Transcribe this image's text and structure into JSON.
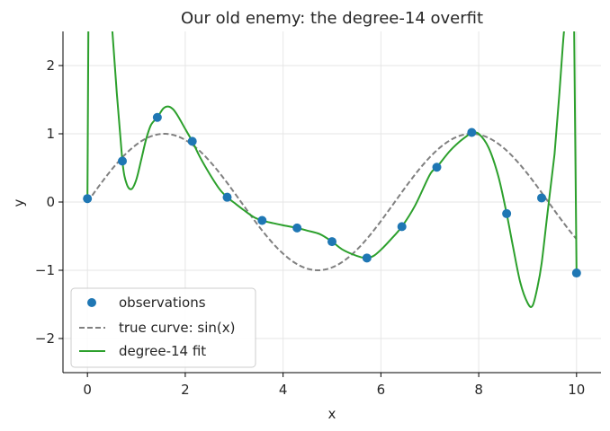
{
  "chart_data": {
    "type": "scatter",
    "title": "Our old enemy: the degree-14 overfit",
    "xlabel": "x",
    "ylabel": "y",
    "xlim": [
      -0.5,
      10.5
    ],
    "ylim": [
      -2.5,
      2.5
    ],
    "grid": true,
    "legend_position": "lower-left",
    "xticks": [
      0,
      2,
      4,
      6,
      8,
      10
    ],
    "xtick_labels": [
      "0",
      "2",
      "4",
      "6",
      "8",
      "10"
    ],
    "yticks": [
      -2,
      -1,
      0,
      1,
      2
    ],
    "ytick_labels": [
      "−2",
      "−1",
      "0",
      "1",
      "2"
    ],
    "series": [
      {
        "name": "observations",
        "kind": "scatter",
        "color": "#1f77b4",
        "x": [
          0.0,
          0.714,
          1.429,
          2.143,
          2.857,
          3.571,
          4.286,
          5.0,
          5.714,
          6.429,
          7.143,
          7.857,
          8.571,
          9.286,
          10.0
        ],
        "y": [
          0.05,
          0.6,
          1.24,
          0.89,
          0.07,
          -0.27,
          -0.38,
          -0.58,
          -0.82,
          -0.36,
          0.51,
          1.02,
          -0.17,
          0.06,
          -1.04
        ]
      },
      {
        "name": "true curve: sin(x)",
        "kind": "line",
        "style": "dashed",
        "color": "#808080",
        "function": "sin",
        "x_range": [
          0,
          10
        ]
      },
      {
        "name": "degree-14 fit",
        "kind": "line",
        "color": "#2ca02c",
        "x": [
          0.0,
          0.02,
          0.05,
          0.1,
          0.2,
          0.3,
          0.4,
          0.5,
          0.6,
          0.714,
          0.8,
          0.9,
          1.0,
          1.1,
          1.2,
          1.3,
          1.429,
          1.55,
          1.65,
          1.75,
          1.85,
          2.0,
          2.143,
          2.3,
          2.5,
          2.7,
          2.857,
          3.0,
          3.2,
          3.4,
          3.571,
          3.8,
          4.0,
          4.286,
          4.5,
          4.75,
          5.0,
          5.2,
          5.4,
          5.6,
          5.714,
          5.85,
          6.0,
          6.2,
          6.429,
          6.7,
          7.0,
          7.143,
          7.4,
          7.6,
          7.8,
          7.857,
          8.0,
          8.2,
          8.4,
          8.571,
          8.7,
          8.85,
          9.0,
          9.1,
          9.2,
          9.286,
          9.4,
          9.55,
          9.65,
          9.72,
          9.76,
          9.8,
          9.84,
          9.9,
          9.95,
          10.0
        ],
        "y": [
          0.05,
          2.6,
          2.6,
          2.6,
          2.6,
          2.6,
          2.6,
          2.6,
          1.6,
          0.6,
          0.27,
          0.19,
          0.33,
          0.62,
          0.92,
          1.13,
          1.24,
          1.37,
          1.4,
          1.36,
          1.26,
          1.07,
          0.89,
          0.66,
          0.41,
          0.19,
          0.07,
          -0.01,
          -0.12,
          -0.22,
          -0.27,
          -0.31,
          -0.34,
          -0.38,
          -0.42,
          -0.47,
          -0.58,
          -0.69,
          -0.76,
          -0.81,
          -0.82,
          -0.79,
          -0.7,
          -0.55,
          -0.36,
          -0.05,
          0.4,
          0.51,
          0.74,
          0.88,
          0.99,
          1.02,
          1.0,
          0.8,
          0.38,
          -0.17,
          -0.65,
          -1.18,
          -1.48,
          -1.52,
          -1.25,
          -0.9,
          -0.2,
          0.7,
          1.6,
          2.3,
          2.6,
          2.6,
          2.6,
          2.6,
          2.6,
          -1.04
        ]
      }
    ]
  }
}
